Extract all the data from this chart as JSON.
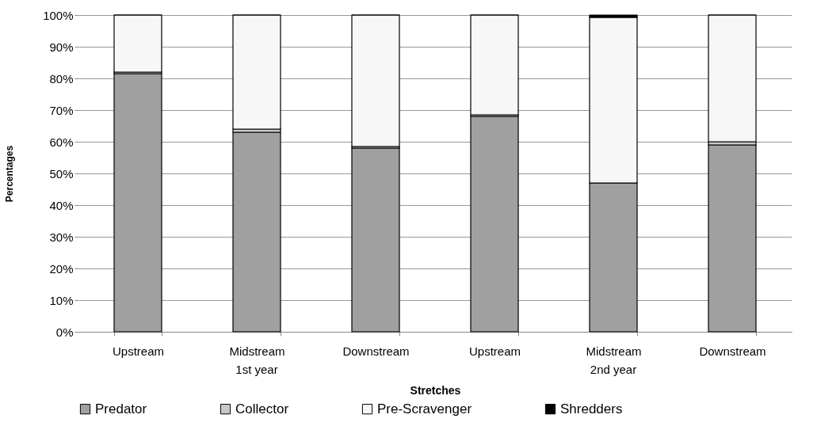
{
  "chart_data": {
    "type": "bar",
    "stacked": true,
    "xlabel": "Stretches",
    "ylabel": "Percentages",
    "categories": [
      "Upstream",
      "Midstream",
      "Downstream",
      "Upstream",
      "Midstream",
      "Downstream"
    ],
    "annotations": [
      "1st year",
      "2nd year"
    ],
    "series": [
      {
        "name": "Predator",
        "color": "#a0a0a0",
        "values": [
          81.5,
          63,
          58,
          68,
          47,
          59
        ]
      },
      {
        "name": "Collector",
        "color": "#c8c8c8",
        "values": [
          0.5,
          1,
          0.5,
          0.5,
          0,
          1
        ]
      },
      {
        "name": "Pre-Scravenger",
        "color": "#f7f7f7",
        "values": [
          18,
          36,
          41.5,
          31.5,
          52.3,
          40
        ]
      },
      {
        "name": "Shredders",
        "color": "#000000",
        "values": [
          0,
          0,
          0,
          0,
          0.7,
          0
        ]
      }
    ],
    "ylim": [
      0,
      100
    ],
    "yticks": [
      {
        "value": 0,
        "label": "0%"
      },
      {
        "value": 10,
        "label": "10%"
      },
      {
        "value": 20,
        "label": "20%"
      },
      {
        "value": 30,
        "label": "30%"
      },
      {
        "value": 40,
        "label": "40%"
      },
      {
        "value": 50,
        "label": "50%"
      },
      {
        "value": 60,
        "label": "60%"
      },
      {
        "value": 70,
        "label": "70%"
      },
      {
        "value": 80,
        "label": "80%"
      },
      {
        "value": 90,
        "label": "90%"
      },
      {
        "value": 100,
        "label": "100%"
      }
    ],
    "grid": "y",
    "legend": "bottom"
  }
}
